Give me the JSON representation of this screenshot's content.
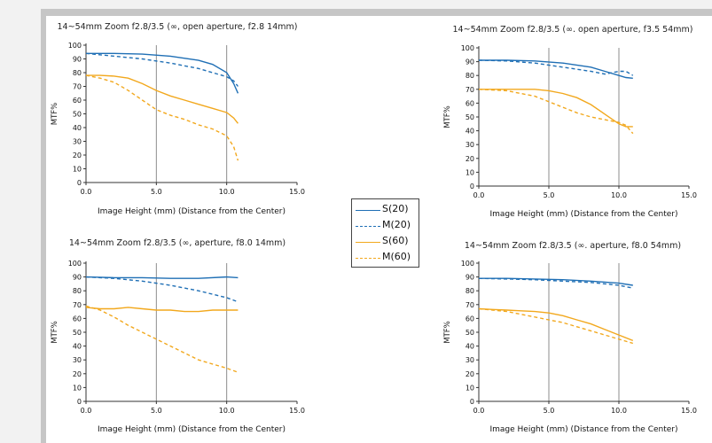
{
  "colors": {
    "blue": "#1f6fb5",
    "orange": "#f2a81d",
    "grid": "#8c8c8c",
    "axis": "#333333"
  },
  "legend": [
    {
      "label": "S(20)",
      "color": "#1f6fb5",
      "dash": false
    },
    {
      "label": "M(20)",
      "color": "#1f6fb5",
      "dash": true
    },
    {
      "label": "S(60)",
      "color": "#f2a81d",
      "dash": false
    },
    {
      "label": "M(60)",
      "color": "#f2a81d",
      "dash": true
    }
  ],
  "chart_data": [
    {
      "type": "line",
      "title": "14~54mm Zoom f2.8/3.5 (∞, open aperture, f2.8  14mm)",
      "xlabel": "Image Height (mm) (Distance from the Center)",
      "ylabel": "MTF%",
      "xlim": [
        0,
        15
      ],
      "ylim": [
        0,
        100
      ],
      "xticks": [
        "0.0",
        "5.0",
        "10.0",
        "15.0"
      ],
      "yticks": [
        "0",
        "10",
        "20",
        "30",
        "40",
        "50",
        "60",
        "70",
        "80",
        "90",
        "100"
      ],
      "series": [
        {
          "name": "S(20)",
          "x": [
            0,
            2,
            4,
            6,
            8,
            9,
            10,
            10.5,
            10.8
          ],
          "y": [
            94,
            94,
            93.5,
            92,
            89,
            86,
            80,
            72,
            65
          ]
        },
        {
          "name": "M(20)",
          "x": [
            0,
            2,
            4,
            6,
            8,
            9,
            10,
            10.5,
            10.8
          ],
          "y": [
            94,
            92,
            90,
            87,
            83,
            80,
            77,
            74,
            70
          ]
        },
        {
          "name": "S(60)",
          "x": [
            0,
            1,
            2,
            3,
            4,
            5,
            6,
            7,
            8,
            9,
            10,
            10.5,
            10.8
          ],
          "y": [
            78,
            78,
            77.5,
            76,
            72,
            67,
            63,
            60,
            57,
            54,
            51,
            47,
            43
          ]
        },
        {
          "name": "M(60)",
          "x": [
            0,
            1,
            2,
            3,
            4,
            5,
            6,
            7,
            8,
            9,
            10,
            10.5,
            10.8
          ],
          "y": [
            78,
            76,
            73,
            67,
            60,
            53,
            49,
            46,
            42,
            39,
            34,
            26,
            16
          ]
        }
      ]
    },
    {
      "type": "line",
      "title": "14~54mm Zoom f2.8/3.5 (∞. open aperture, f3.5 54mm)",
      "xlabel": "Image Height (mm) (Distance from the Center)",
      "ylabel": "MTF%",
      "xlim": [
        0,
        15
      ],
      "ylim": [
        0,
        100
      ],
      "xticks": [
        "0.0",
        "5.0",
        "10.0",
        "15.0"
      ],
      "yticks": [
        "0",
        "10",
        "20",
        "30",
        "40",
        "50",
        "60",
        "70",
        "80",
        "90",
        "100"
      ],
      "series": [
        {
          "name": "S(20)",
          "x": [
            0,
            2,
            4,
            6,
            8,
            9,
            10,
            10.5,
            11
          ],
          "y": [
            91,
            91,
            90.5,
            89,
            86,
            83,
            80,
            78.5,
            78
          ]
        },
        {
          "name": "M(20)",
          "x": [
            0,
            2,
            4,
            6,
            8,
            9,
            10,
            10.5,
            11
          ],
          "y": [
            91,
            90.5,
            89,
            86,
            83,
            81,
            83,
            83,
            80
          ]
        },
        {
          "name": "S(60)",
          "x": [
            0,
            2,
            4,
            5,
            6,
            7,
            8,
            9,
            10,
            10.5,
            11
          ],
          "y": [
            70,
            70,
            70,
            69,
            67,
            64,
            59,
            52,
            45,
            43,
            43
          ]
        },
        {
          "name": "M(60)",
          "x": [
            0,
            2,
            4,
            5,
            6,
            7,
            8,
            9,
            10,
            10.5,
            11
          ],
          "y": [
            70,
            69,
            65,
            61,
            57,
            53,
            50,
            48,
            46,
            44,
            38
          ]
        }
      ]
    },
    {
      "type": "line",
      "title": "14~54mm Zoom f2.8/3.5 (∞, aperture, f8.0  14mm)",
      "xlabel": "Image Height (mm) (Distance from the Center)",
      "ylabel": "MTF%",
      "xlim": [
        0,
        15
      ],
      "ylim": [
        0,
        100
      ],
      "xticks": [
        "0.0",
        "5.0",
        "10.0",
        "15.0"
      ],
      "yticks": [
        "0",
        "10",
        "20",
        "30",
        "40",
        "50",
        "60",
        "70",
        "80",
        "90",
        "100"
      ],
      "series": [
        {
          "name": "S(20)",
          "x": [
            0,
            2,
            4,
            6,
            8,
            10,
            10.8
          ],
          "y": [
            90,
            89.5,
            89.5,
            89,
            89,
            90,
            89.5
          ]
        },
        {
          "name": "M(20)",
          "x": [
            0,
            2,
            4,
            6,
            8,
            10,
            10.8
          ],
          "y": [
            90,
            89,
            87,
            84,
            80,
            75,
            72
          ]
        },
        {
          "name": "S(60)",
          "x": [
            0,
            1,
            2,
            3,
            4,
            5,
            6,
            7,
            8,
            9,
            10,
            10.8
          ],
          "y": [
            68,
            67,
            67,
            68,
            67,
            66,
            66,
            65,
            65,
            66,
            66,
            66
          ]
        },
        {
          "name": "M(60)",
          "x": [
            0,
            1,
            2,
            3,
            4,
            5,
            6,
            7,
            8,
            9,
            10,
            10.8
          ],
          "y": [
            69,
            66,
            61,
            55,
            50,
            45,
            40,
            35,
            30,
            27,
            24,
            21
          ]
        }
      ]
    },
    {
      "type": "line",
      "title": "14~54mm Zoom f2.8/3.5 (∞. aperture, f8.0 54mm)",
      "xlabel": "Image Height (mm) (Distance from the Center)",
      "ylabel": "MTF%",
      "xlim": [
        0,
        15
      ],
      "ylim": [
        0,
        100
      ],
      "xticks": [
        "0.0",
        "5.0",
        "10.0",
        "15.0"
      ],
      "yticks": [
        "0",
        "10",
        "20",
        "30",
        "40",
        "50",
        "60",
        "70",
        "80",
        "90",
        "100"
      ],
      "series": [
        {
          "name": "S(20)",
          "x": [
            0,
            2,
            4,
            6,
            8,
            10,
            11
          ],
          "y": [
            89,
            89,
            88.5,
            88,
            87,
            85.5,
            84
          ]
        },
        {
          "name": "M(20)",
          "x": [
            0,
            2,
            4,
            6,
            8,
            10,
            11
          ],
          "y": [
            89,
            88.5,
            88,
            87,
            86,
            84,
            82
          ]
        },
        {
          "name": "S(60)",
          "x": [
            0,
            1,
            2,
            3,
            4,
            5,
            6,
            7,
            8,
            9,
            10,
            11
          ],
          "y": [
            67,
            66.5,
            66,
            65.5,
            65,
            64,
            62,
            59,
            56,
            52,
            48,
            44
          ]
        },
        {
          "name": "M(60)",
          "x": [
            0,
            1,
            2,
            3,
            4,
            5,
            6,
            7,
            8,
            9,
            10,
            11
          ],
          "y": [
            67,
            66,
            65,
            63,
            61,
            59,
            57,
            54,
            51,
            48,
            45,
            42
          ]
        }
      ]
    }
  ]
}
